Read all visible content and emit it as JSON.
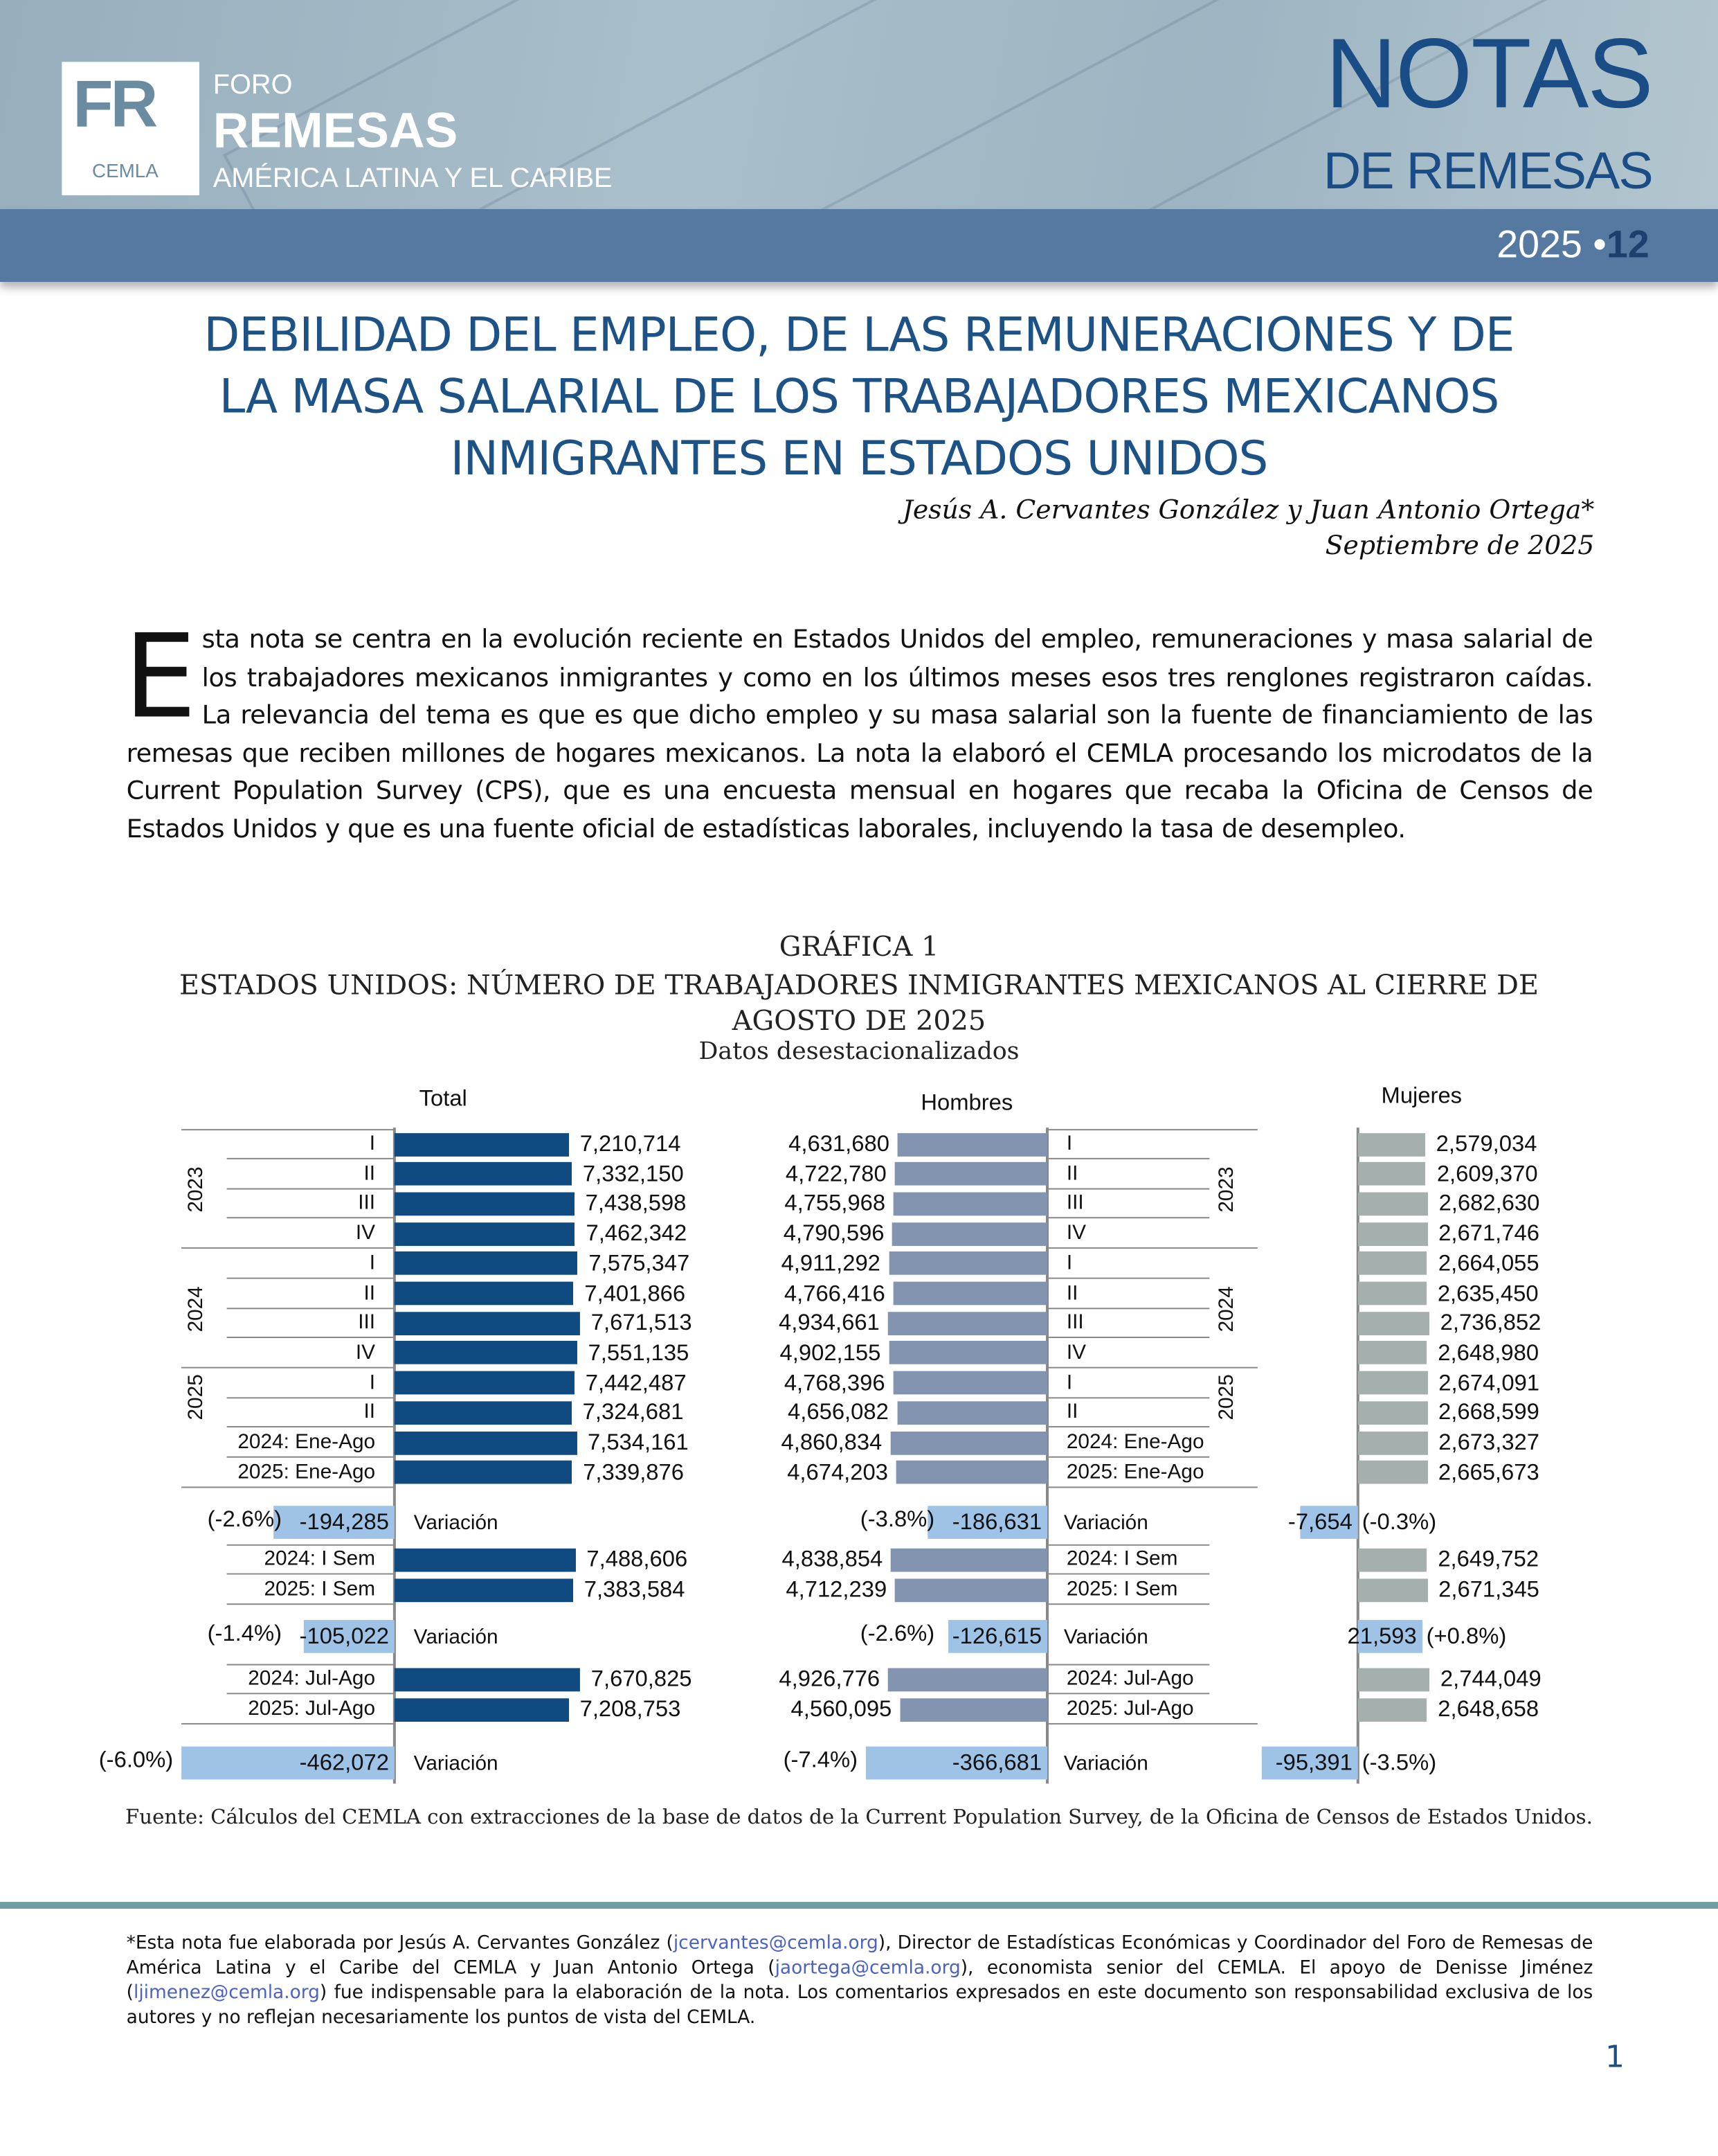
{
  "header": {
    "logo_initials": "FR",
    "logo_org": "CEMLA",
    "brand_line1": "FORO",
    "brand_line2": "REMESAS",
    "brand_line3": "AMÉRICA LATINA Y EL CARIBE",
    "series_title1": "NOTAS",
    "series_title2": "DE REMESAS",
    "issue_year": "2025",
    "issue_sep": "•",
    "issue_number": "12"
  },
  "article": {
    "title_lines": [
      "DEBILIDAD DEL EMPLEO, DE LAS REMUNERACIONES Y DE",
      "LA MASA SALARIAL DE LOS TRABAJADORES MEXICANOS",
      "INMIGRANTES EN ESTADOS UNIDOS"
    ],
    "authors": "Jesús A. Cervantes González y Juan Antonio Ortega*",
    "date": "Septiembre de 2025",
    "drop_cap": "E",
    "intro": "sta nota se centra en la evolución reciente en Estados Unidos del empleo, remuneraciones y masa salarial de los trabajadores mexicanos inmigrantes y como en los últimos meses esos tres renglones registraron caídas. La relevancia del tema es que es que dicho empleo y su masa salarial son la fuente de financiamiento de las remesas que reciben millones de hogares mexicanos. La nota la elaboró el CEMLA procesando los microdatos de la Current Population Survey (CPS), que es una encuesta mensual en hogares que recaba la Oficina de Censos de Estados Unidos y que es una fuente oficial de estadísticas laborales, incluyendo la tasa de desempleo."
  },
  "chart_data": {
    "type": "bar",
    "label": "GRÁFICA 1",
    "title": "ESTADOS UNIDOS: NÚMERO DE TRABAJADORES INMIGRANTES MEXICANOS AL CIERRE DE AGOSTO DE 2025",
    "subtitle": "Datos desestacionalizados",
    "source": "Fuente: Cálculos del CEMLA con extracciones de la base de datos de la Current Population Survey, de la Oficina de Censos de Estados Unidos.",
    "years": [
      "2023",
      "2024",
      "2025"
    ],
    "categories": [
      "I",
      "II",
      "III",
      "IV",
      "I",
      "II",
      "III",
      "IV",
      "I",
      "II",
      "2024: Ene-Ago",
      "2025: Ene-Ago",
      "2024: I Sem",
      "2025: I Sem",
      "2024: Jul-Ago",
      "2025: Jul-Ago"
    ],
    "variation_label": "Variación",
    "colors": {
      "total": "#0f4a80",
      "hombres": "#8394b0",
      "mujeres": "#a5afae",
      "variation": "#9fc3e6"
    },
    "series": [
      {
        "name": "Total",
        "values": [
          7210714,
          7332150,
          7438598,
          7462342,
          7575347,
          7401866,
          7671513,
          7551135,
          7442487,
          7324681,
          7534161,
          7339876,
          7488606,
          7383584,
          7670825,
          7208753
        ],
        "labels": [
          "7,210,714",
          "7,332,150",
          "7,438,598",
          "7,462,342",
          "7,575,347",
          "7,401,866",
          "7,671,513",
          "7,551,135",
          "7,442,487",
          "7,324,681",
          "7,534,161",
          "7,339,876",
          "7,488,606",
          "7,383,584",
          "7,670,825",
          "7,208,753"
        ],
        "variations": [
          {
            "value": -194285,
            "label": "-194,285",
            "pct": "(-2.6%)"
          },
          {
            "value": -105022,
            "label": "-105,022",
            "pct": "(-1.4%)"
          },
          {
            "value": -462072,
            "label": "-462,072",
            "pct": "(-6.0%)"
          }
        ]
      },
      {
        "name": "Hombres",
        "values": [
          4631680,
          4722780,
          4755968,
          4790596,
          4911292,
          4766416,
          4934661,
          4902155,
          4768396,
          4656082,
          4860834,
          4674203,
          4838854,
          4712239,
          4926776,
          4560095
        ],
        "labels": [
          "4,631,680",
          "4,722,780",
          "4,755,968",
          "4,790,596",
          "4,911,292",
          "4,766,416",
          "4,934,661",
          "4,902,155",
          "4,768,396",
          "4,656,082",
          "4,860,834",
          "4,674,203",
          "4,838,854",
          "4,712,239",
          "4,926,776",
          "4,560,095"
        ],
        "variations": [
          {
            "value": -186631,
            "label": "-186,631",
            "pct": "(-3.8%)"
          },
          {
            "value": -126615,
            "label": "-126,615",
            "pct": "(-2.6%)"
          },
          {
            "value": -366681,
            "label": "-366,681",
            "pct": "(-7.4%)"
          }
        ]
      },
      {
        "name": "Mujeres",
        "values": [
          2579034,
          2609370,
          2682630,
          2671746,
          2664055,
          2635450,
          2736852,
          2648980,
          2674091,
          2668599,
          2673327,
          2665673,
          2649752,
          2671345,
          2744049,
          2648658
        ],
        "labels": [
          "2,579,034",
          "2,609,370",
          "2,682,630",
          "2,671,746",
          "2,664,055",
          "2,635,450",
          "2,736,852",
          "2,648,980",
          "2,674,091",
          "2,668,599",
          "2,673,327",
          "2,665,673",
          "2,649,752",
          "2,671,345",
          "2,744,049",
          "2,648,658"
        ],
        "variations": [
          {
            "value": -7654,
            "label": "-7,654",
            "pct": "(-0.3%)"
          },
          {
            "value": 21593,
            "label": "21,593",
            "pct": "(+0.8%)"
          },
          {
            "value": -95391,
            "label": "-95,391",
            "pct": "(-3.5%)"
          }
        ]
      }
    ]
  },
  "footnote": {
    "p1": "*Esta nota fue elaborada por Jesús A. Cervantes González (",
    "email1": "jcervantes@cemla.org",
    "p2": "), Director de Estadísticas Económicas y Coordinador del Foro de Remesas de América Latina y el Caribe del CEMLA y Juan Antonio Ortega (",
    "email2": "jaortega@cemla.org",
    "p3": "), economista senior del CEMLA. El apoyo de Denisse Jiménez (",
    "email3": "ljimenez@cemla.org",
    "p4": ") fue indispensable para la elaboración de la nota. Los comentarios expresados en este documento son responsabilidad exclusiva de los autores y no reflejan necesariamente los puntos de vista del CEMLA."
  },
  "page_number": "1"
}
